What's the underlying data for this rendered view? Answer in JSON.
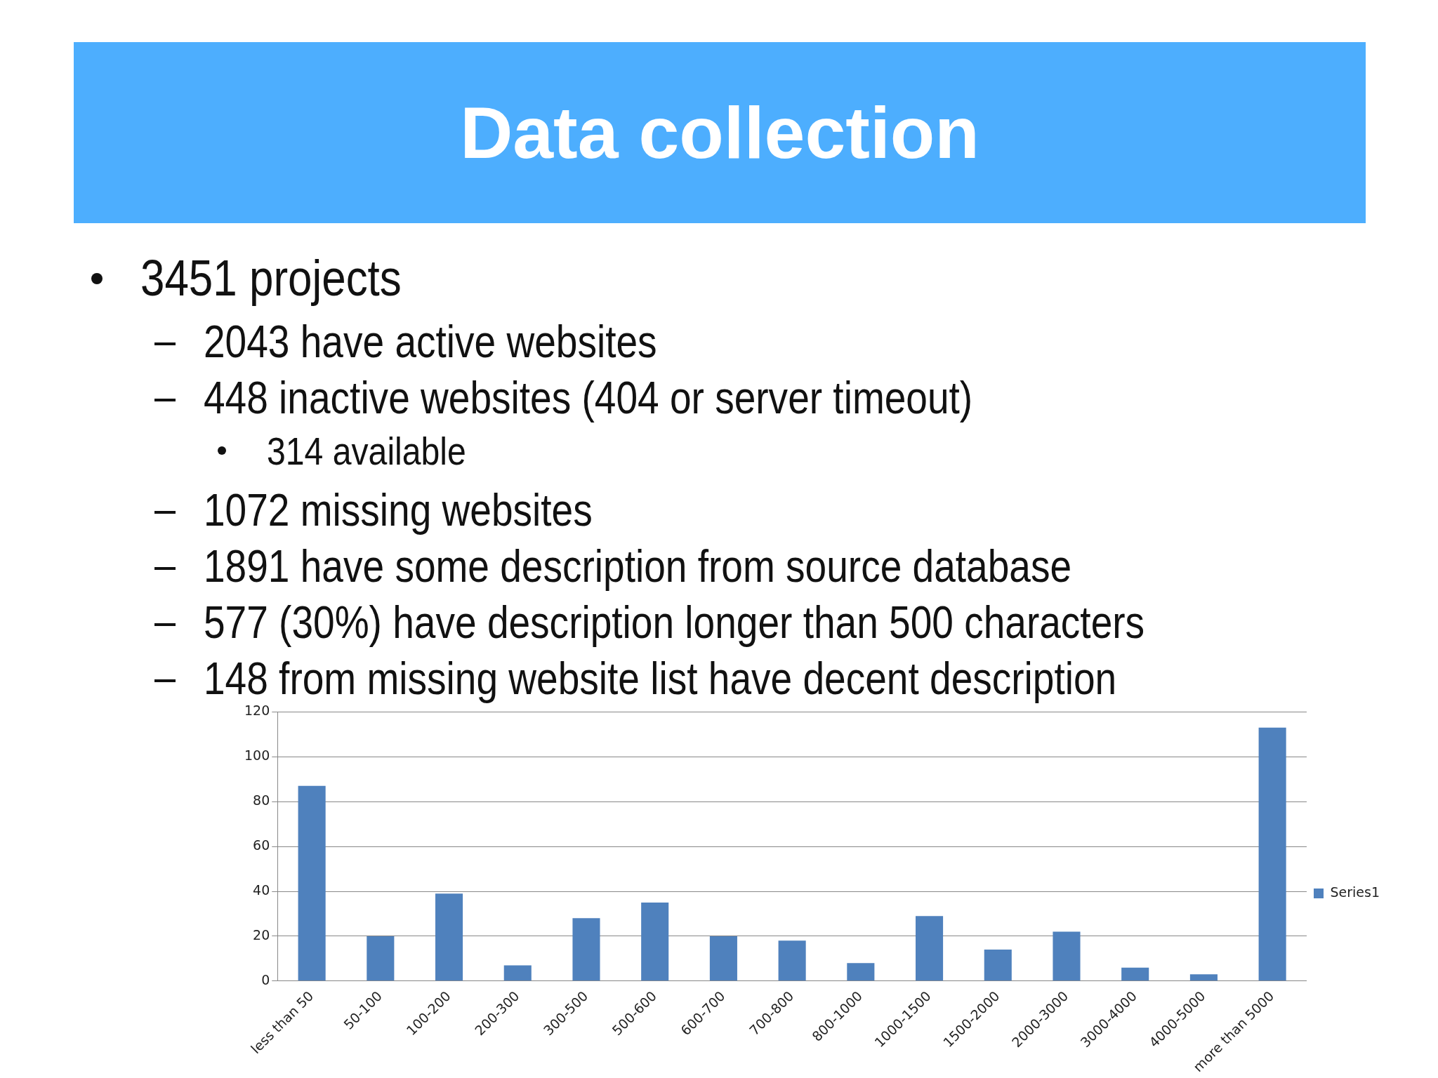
{
  "chart_data": {
    "type": "bar",
    "title": "Data collection",
    "annotations": [
      "3451 projects",
      "2043 have active websites",
      "448 inactive websites (404 or server timeout)",
      "314 available",
      "1072 missing websites",
      "1891 have some description from source database",
      "577 (30%) have description longer than 500 characters",
      "148 from missing website list have decent description"
    ],
    "categories": [
      "less than 50",
      "50-100",
      "100-200",
      "200-300",
      "300-500",
      "500-600",
      "600-700",
      "700-800",
      "800-1000",
      "1000-1500",
      "1500-2000",
      "2000-3000",
      "3000-4000",
      "4000-5000",
      "more than 5000"
    ],
    "series": [
      {
        "name": "Series1",
        "color": "#4f81bd",
        "values": [
          87,
          20,
          39,
          7,
          28,
          35,
          20,
          18,
          8,
          29,
          14,
          22,
          6,
          3,
          113
        ]
      }
    ],
    "ylim": [
      0,
      120
    ],
    "yticks": [
      0,
      20,
      40,
      60,
      80,
      100,
      120
    ],
    "grid": "y",
    "legend": "right"
  }
}
